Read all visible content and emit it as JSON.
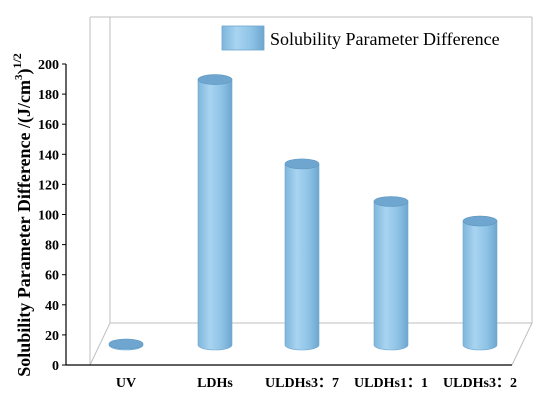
{
  "chart_data": {
    "type": "bar",
    "style": "3d-cylinder",
    "categories": [
      "UV",
      "LDHs",
      "ULDHs3：7",
      "ULDHs1：1",
      "ULDHs3：2"
    ],
    "series": [
      {
        "name": "Solubility Parameter Difference",
        "values": [
          4,
          183,
          127,
          102,
          89
        ],
        "color": "#8ec3e6"
      }
    ],
    "ylabel_main": "Solubility Parameter Difference /(J/cm",
    "ylabel_sup3": "3",
    "ylabel_close": ")",
    "ylabel_sup": "1/2",
    "ylim": [
      0,
      200
    ],
    "yticks": [
      0,
      20,
      40,
      60,
      80,
      100,
      120,
      140,
      160,
      180,
      200
    ],
    "legend_position": "top-right",
    "grid": false
  }
}
